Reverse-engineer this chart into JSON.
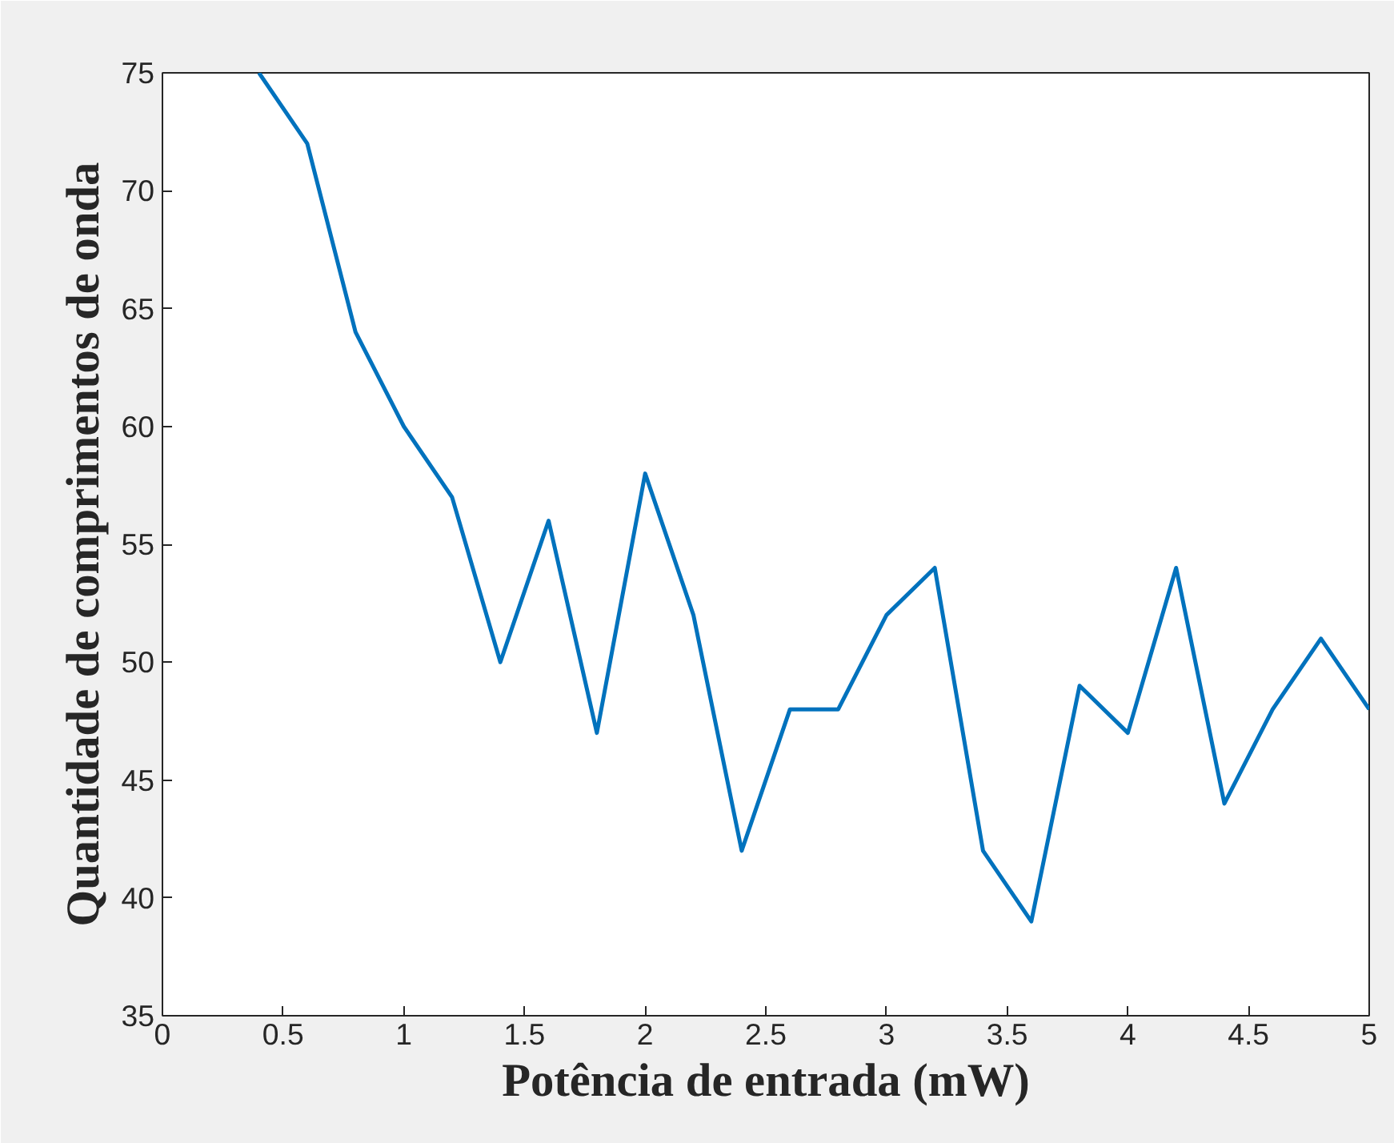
{
  "chart_data": {
    "type": "line",
    "xlabel": "Potência de entrada (mW)",
    "ylabel": "Quantidade de comprimentos de onda",
    "x": [
      0.4,
      0.6,
      0.8,
      1.0,
      1.2,
      1.4,
      1.6,
      1.8,
      2.0,
      2.2,
      2.4,
      2.6,
      2.8,
      3.0,
      3.2,
      3.4,
      3.6,
      3.8,
      4.0,
      4.2,
      4.4,
      4.6,
      4.8,
      5.0
    ],
    "series": [
      {
        "color": "#0072bd",
        "values": [
          75,
          72,
          64,
          60,
          57,
          50,
          56,
          47,
          58,
          52,
          42,
          48,
          48,
          52,
          54,
          42,
          39,
          49,
          47,
          54,
          44,
          48,
          51,
          48
        ]
      }
    ],
    "xlim": [
      0,
      5
    ],
    "ylim": [
      35,
      75
    ],
    "xticks": [
      0,
      0.5,
      1,
      1.5,
      2,
      2.5,
      3,
      3.5,
      4,
      4.5,
      5
    ],
    "yticks": [
      35,
      40,
      45,
      50,
      55,
      60,
      65,
      70,
      75
    ],
    "grid": false,
    "marker": "none",
    "line_style": "solid"
  }
}
